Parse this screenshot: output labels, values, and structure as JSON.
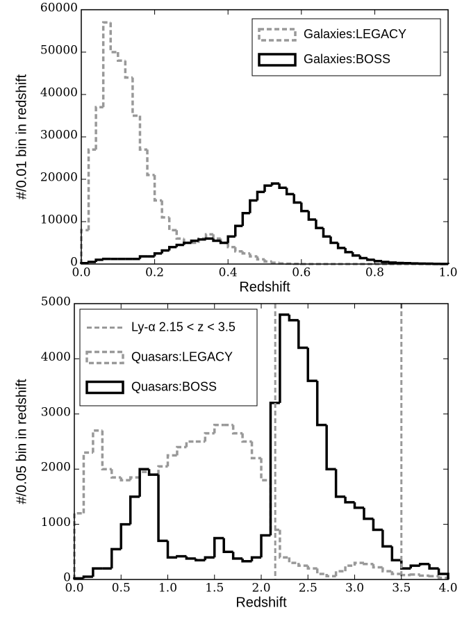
{
  "chart_data": [
    {
      "type": "histogram",
      "xlabel": "Redshift",
      "ylabel": "#/0.01 bin in redshift",
      "bins": [
        0,
        0.02,
        0.04,
        0.06,
        0.08,
        0.1,
        0.12,
        0.14,
        0.16,
        0.18,
        0.2,
        0.22,
        0.24,
        0.26,
        0.28,
        0.3,
        0.32,
        0.34,
        0.36,
        0.38,
        0.4,
        0.42,
        0.44,
        0.46,
        0.48,
        0.5,
        0.52,
        0.54,
        0.56,
        0.58,
        0.6,
        0.62,
        0.64,
        0.66,
        0.68,
        0.7,
        0.72,
        0.74,
        0.76,
        0.78,
        0.8,
        0.82,
        0.84,
        0.86,
        0.88,
        0.9,
        0.92,
        0.94,
        0.96,
        0.98,
        1.0
      ],
      "series": [
        {
          "name": "Galaxies:LEGACY",
          "color": "#999999",
          "style": "dashed",
          "values": [
            8000,
            27000,
            37000,
            57000,
            50000,
            48000,
            44000,
            35000,
            27000,
            21000,
            15000,
            11000,
            8000,
            6000,
            5000,
            5000,
            6000,
            7000,
            6000,
            5000,
            4000,
            3000,
            2500,
            1800,
            1100,
            600,
            300,
            150,
            80,
            40,
            0,
            0,
            0,
            0,
            0,
            0,
            0,
            0,
            0,
            0,
            0,
            0,
            0,
            0,
            0,
            0,
            0,
            0,
            0,
            0
          ]
        },
        {
          "name": "Galaxies:BOSS",
          "color": "#000000",
          "style": "solid",
          "values": [
            200,
            500,
            1000,
            1200,
            1200,
            1200,
            1200,
            1200,
            1800,
            1800,
            2500,
            3200,
            4000,
            4500,
            5000,
            5500,
            5800,
            6000,
            5500,
            5000,
            6500,
            9000,
            12000,
            15000,
            17000,
            18500,
            19000,
            18000,
            16500,
            14500,
            12500,
            10500,
            8500,
            6500,
            5000,
            3800,
            2800,
            2000,
            1400,
            1000,
            700,
            500,
            350,
            250,
            200,
            150,
            100,
            80,
            50,
            30
          ]
        }
      ],
      "xlim": [
        0,
        1.0
      ],
      "xticks": [
        {
          "value": 0,
          "label": "0.0"
        },
        0.2,
        0.4,
        0.6,
        0.8,
        {
          "value": 1.0,
          "label": "1.0"
        }
      ],
      "ylim": [
        0,
        60000
      ],
      "yticks": [
        0,
        10000,
        20000,
        30000,
        40000,
        50000,
        60000
      ],
      "legend": "upper right"
    },
    {
      "type": "histogram",
      "xlabel": "Redshift",
      "ylabel": "#/0.05 bin in redshift",
      "bins": [
        0,
        0.1,
        0.2,
        0.3,
        0.4,
        0.5,
        0.6,
        0.7,
        0.8,
        0.9,
        1.0,
        1.1,
        1.2,
        1.3,
        1.4,
        1.5,
        1.6,
        1.7,
        1.8,
        1.9,
        2.0,
        2.1,
        2.2,
        2.3,
        2.4,
        2.5,
        2.6,
        2.7,
        2.8,
        2.9,
        3.0,
        3.1,
        3.2,
        3.3,
        3.4,
        3.5,
        3.6,
        3.7,
        3.8,
        3.9,
        4.0
      ],
      "vlines": {
        "name": "Ly-α 2.15 < z < 3.5",
        "color": "#999999",
        "style": "dashed",
        "x": [
          2.15,
          3.5
        ]
      },
      "series": [
        {
          "name": "Quasars:LEGACY",
          "color": "#999999",
          "style": "dashed",
          "values": [
            1200,
            2300,
            2700,
            2000,
            1850,
            1800,
            1850,
            1950,
            1900,
            2050,
            2250,
            2400,
            2500,
            2500,
            2650,
            2800,
            2800,
            2650,
            2500,
            2200,
            1800,
            900,
            400,
            300,
            250,
            200,
            100,
            60,
            150,
            250,
            300,
            280,
            220,
            150,
            100,
            80,
            90,
            70,
            60,
            30
          ]
        },
        {
          "name": "Quasars:BOSS",
          "color": "#000000",
          "style": "solid",
          "values": [
            20,
            50,
            200,
            200,
            550,
            1000,
            1500,
            2000,
            1900,
            700,
            400,
            420,
            380,
            350,
            400,
            750,
            500,
            380,
            330,
            400,
            800,
            3200,
            4800,
            4700,
            4200,
            3600,
            2800,
            2000,
            1500,
            1400,
            1300,
            1100,
            900,
            600,
            350,
            200,
            250,
            280,
            200,
            100
          ]
        }
      ],
      "xlim": [
        0,
        4.0
      ],
      "xticks": [
        {
          "value": 0,
          "label": "0.0"
        },
        0.5,
        {
          "value": 1.0,
          "label": "1.0"
        },
        1.5,
        {
          "value": 2.0,
          "label": "2.0"
        },
        2.5,
        {
          "value": 3.0,
          "label": "3.0"
        },
        3.5,
        {
          "value": 4.0,
          "label": "4.0"
        }
      ],
      "ylim": [
        0,
        5000
      ],
      "yticks": [
        0,
        1000,
        2000,
        3000,
        4000,
        5000
      ],
      "legend": "upper left"
    }
  ]
}
